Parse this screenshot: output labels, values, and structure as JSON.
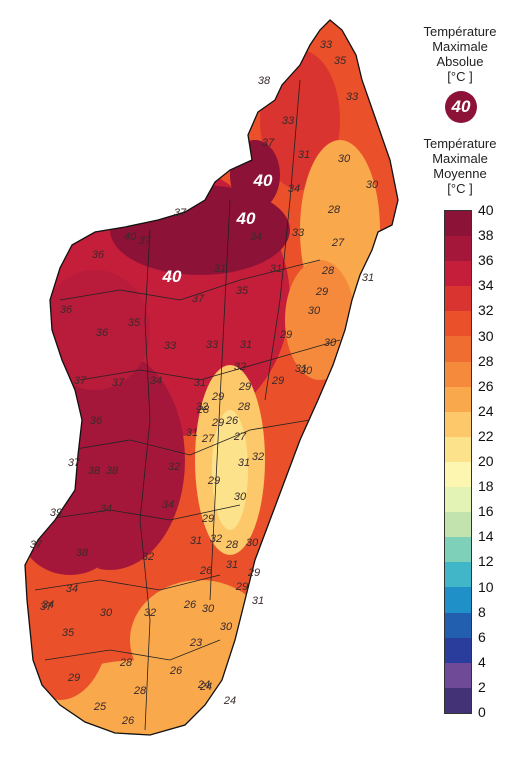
{
  "legend": {
    "absolute_title": [
      "Température",
      "Maximale",
      "Absolue",
      "[°C ]"
    ],
    "absolute_marker_value": "40",
    "absolute_marker_color": "#8c1238",
    "mean_title": [
      "Température",
      "Maximale",
      "Moyenne",
      "[°C ]"
    ],
    "scale_ticks": [
      "40",
      "38",
      "36",
      "34",
      "32",
      "30",
      "28",
      "26",
      "24",
      "22",
      "20",
      "18",
      "16",
      "14",
      "12",
      "10",
      "8",
      "6",
      "4",
      "2",
      "0"
    ],
    "scale_colors": [
      "#8c1238",
      "#a5173a",
      "#c41e3a",
      "#d9342f",
      "#ea512b",
      "#f06d32",
      "#f58a3c",
      "#f9a84c",
      "#fcc86a",
      "#fde28c",
      "#fdf6b0",
      "#e3f2b5",
      "#c3e3ae",
      "#7fd0b9",
      "#40b6c8",
      "#2090c8",
      "#225fae",
      "#2a3c9c",
      "#6f4a97",
      "#433376",
      "#0c1b55"
    ]
  },
  "map": {
    "absolute_max_labels": [
      "40",
      "40",
      "40"
    ],
    "mean_labels": [
      "33",
      "35",
      "33",
      "38",
      "33",
      "37",
      "31",
      "30",
      "34",
      "30",
      "37",
      "37",
      "40",
      "28",
      "33",
      "36",
      "27",
      "34",
      "28",
      "31",
      "31",
      "31",
      "35",
      "29",
      "36",
      "35",
      "37",
      "30",
      "36",
      "33",
      "33",
      "31",
      "29",
      "30",
      "37",
      "34",
      "32",
      "29",
      "31",
      "29",
      "31",
      "28",
      "32",
      "30",
      "37",
      "28",
      "29",
      "36",
      "27",
      "31",
      "26",
      "27",
      "29",
      "37",
      "32",
      "31",
      "38",
      "38",
      "32",
      "34",
      "29",
      "30",
      "29",
      "39",
      "34",
      "32",
      "32",
      "31",
      "28",
      "30",
      "37",
      "38",
      "31",
      "29",
      "26",
      "29",
      "30",
      "32",
      "34",
      "30",
      "24",
      "26",
      "37",
      "34",
      "35",
      "30",
      "23",
      "28",
      "29",
      "26",
      "28",
      "25",
      "26",
      "24",
      "24",
      "31"
    ]
  }
}
